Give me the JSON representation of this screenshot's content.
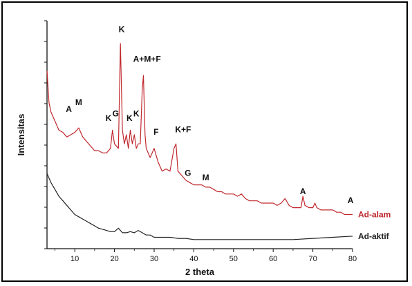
{
  "chart_data": {
    "type": "line",
    "title": "",
    "xlabel": "2 theta",
    "ylabel": "Intensitas",
    "xlim": [
      3,
      80
    ],
    "ylim": [
      0,
      100
    ],
    "xticks": [
      10,
      20,
      30,
      40,
      50,
      60,
      70,
      80
    ],
    "xtick_labels": [
      "10",
      "20",
      "30",
      "40",
      "50",
      "60",
      "70",
      "80"
    ],
    "grid": false,
    "series": [
      {
        "name": "Ad-alam",
        "color": "#c0282d",
        "x": [
          3,
          3.5,
          4,
          5,
          6,
          7,
          8,
          9,
          10,
          11,
          12,
          13,
          14,
          15,
          16,
          17,
          18,
          19,
          19.5,
          20,
          21,
          21.5,
          22,
          22.5,
          23,
          23.5,
          24,
          24.5,
          25,
          25.5,
          26,
          26.5,
          27,
          27.3,
          27.7,
          28,
          29,
          30,
          31,
          32,
          33,
          34,
          35,
          35.5,
          36,
          37,
          38,
          39,
          40,
          41,
          42,
          43,
          44,
          45,
          46,
          47,
          48,
          49,
          50,
          51,
          52,
          53,
          54,
          55,
          56,
          57,
          58,
          59,
          60,
          61,
          62,
          63,
          64,
          65,
          66,
          67,
          67.5,
          68,
          69,
          70,
          70.5,
          71,
          72,
          73,
          74,
          75,
          76,
          77,
          78,
          79,
          80
        ],
        "y": [
          78,
          64,
          60,
          56,
          52,
          51,
          49,
          50,
          51,
          53,
          49,
          47,
          45,
          43,
          43,
          42,
          42,
          44,
          52,
          46,
          44,
          90,
          52,
          46,
          50,
          44,
          52,
          46,
          50,
          44,
          46,
          46,
          70,
          76,
          50,
          44,
          40,
          44,
          38,
          34,
          35,
          34,
          44,
          46,
          34,
          32,
          30,
          29,
          28,
          28,
          28,
          27,
          27,
          26,
          25,
          25,
          24,
          24,
          24,
          23,
          24,
          22,
          21,
          21,
          21,
          20,
          20,
          20,
          20,
          19,
          20,
          22,
          19,
          18,
          18,
          18,
          23,
          19,
          18,
          18,
          20,
          18,
          17,
          17,
          17,
          17,
          16,
          16,
          15,
          15,
          15
        ]
      },
      {
        "name": "Ad-aktif",
        "color": "#222222",
        "x": [
          3,
          4,
          5,
          6,
          7,
          8,
          9,
          10,
          11,
          12,
          13,
          14,
          15,
          16,
          17,
          18,
          19,
          20,
          21,
          22,
          23,
          24,
          25,
          26,
          27,
          28,
          29,
          30,
          32,
          34,
          36,
          38,
          40,
          42,
          44,
          46,
          48,
          50,
          55,
          60,
          65,
          70,
          75,
          80
        ],
        "y": [
          33,
          29,
          26,
          23,
          21,
          19,
          17,
          15,
          14,
          13,
          12,
          11,
          10,
          9,
          8.5,
          8,
          7.5,
          7.5,
          9,
          7,
          7,
          7.5,
          7,
          8,
          7,
          6,
          6,
          5,
          5,
          5,
          4.5,
          4.5,
          4,
          4,
          4,
          4,
          4,
          4,
          4,
          4,
          4,
          4.5,
          5,
          5.5
        ]
      }
    ],
    "annotations": [
      {
        "text": "A",
        "x": 8.5,
        "y": 60
      },
      {
        "text": "M",
        "x": 11,
        "y": 63
      },
      {
        "text": "K",
        "x": 18.5,
        "y": 56
      },
      {
        "text": "G",
        "x": 20.3,
        "y": 58
      },
      {
        "text": "K",
        "x": 21.8,
        "y": 95
      },
      {
        "text": "K",
        "x": 23.8,
        "y": 56
      },
      {
        "text": "K",
        "x": 25.5,
        "y": 58
      },
      {
        "text": "A+M+F",
        "x": 28.2,
        "y": 82
      },
      {
        "text": "F",
        "x": 30.5,
        "y": 50
      },
      {
        "text": "K+F",
        "x": 37.3,
        "y": 51
      },
      {
        "text": "G",
        "x": 38.5,
        "y": 32
      },
      {
        "text": "M",
        "x": 43,
        "y": 30
      },
      {
        "text": "A",
        "x": 67.5,
        "y": 24
      },
      {
        "text": "A",
        "x": 79.5,
        "y": 20
      }
    ],
    "legend": [
      {
        "text": "Ad-alam",
        "color": "#c0282d"
      },
      {
        "text": "Ad-aktif",
        "color": "#222222"
      }
    ]
  }
}
